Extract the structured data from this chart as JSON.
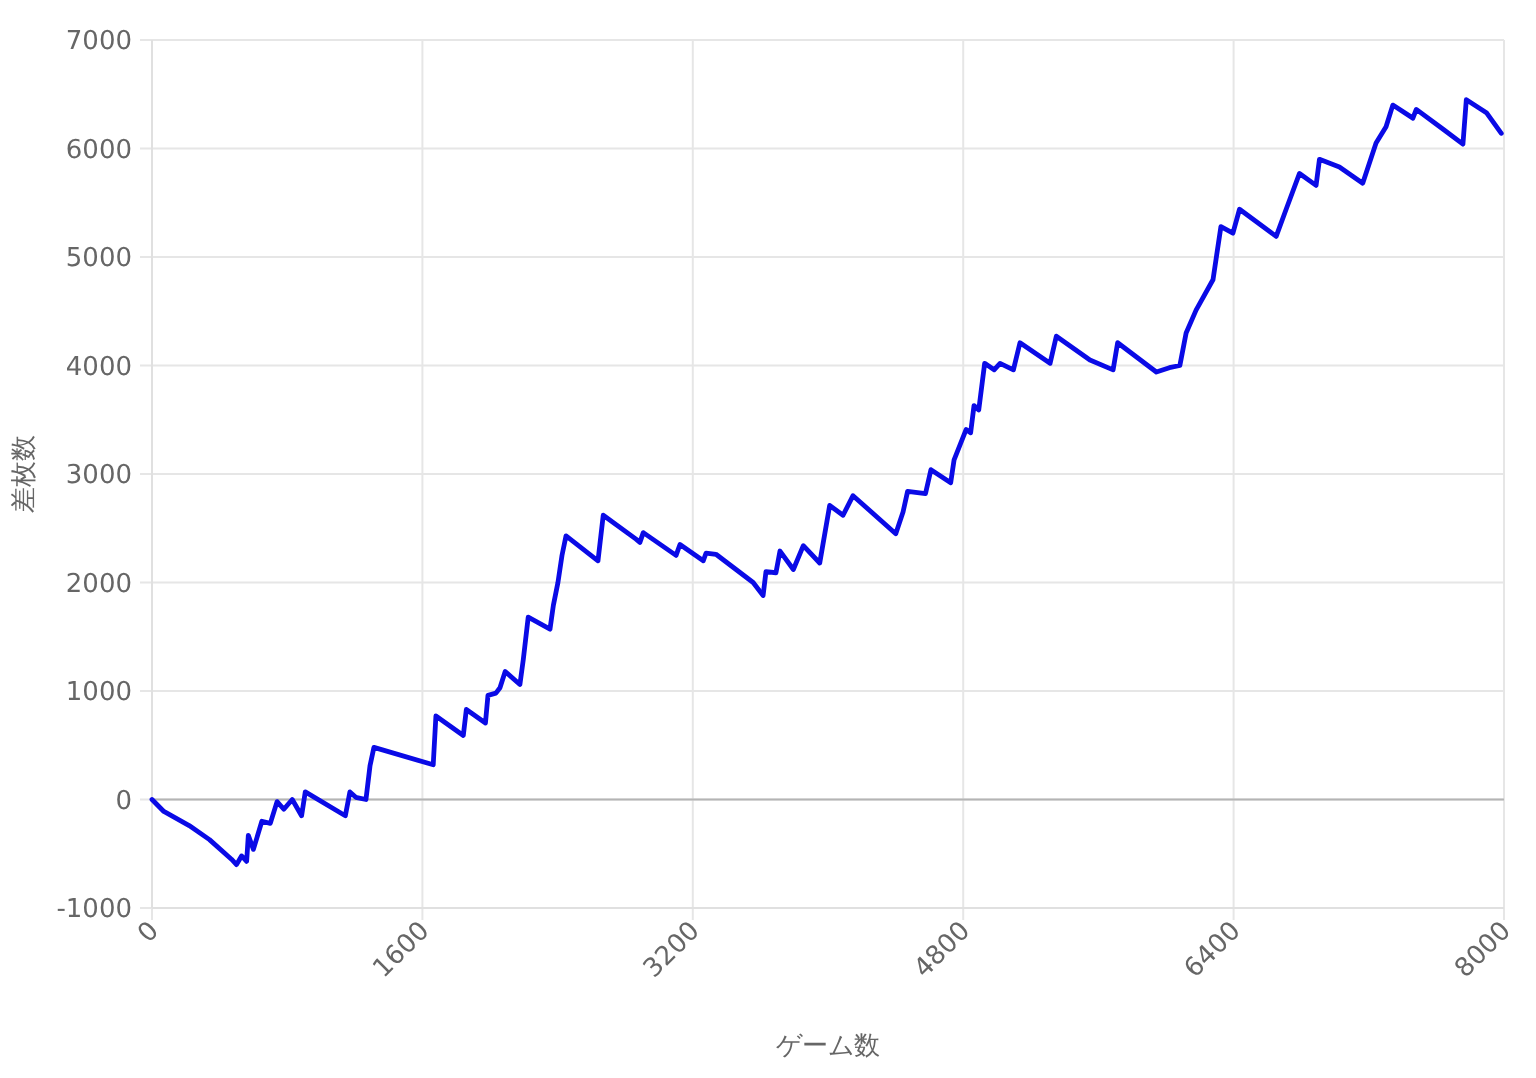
{
  "chart_data": {
    "type": "line",
    "xlabel": "ゲーム数",
    "ylabel": "差枚数",
    "series": [
      {
        "color": "#0a0ae6",
        "x": [
          0,
          70,
          220,
          340,
          470,
          500,
          530,
          560,
          570,
          600,
          650,
          700,
          740,
          780,
          830,
          885,
          907,
          1144,
          1171,
          1206,
          1266,
          1290,
          1313,
          1664,
          1680,
          1842,
          1860,
          1973,
          1988,
          2035,
          2059,
          2090,
          2177,
          2197,
          2226,
          2355,
          2375,
          2402,
          2426,
          2450,
          2639,
          2670,
          2864,
          2887,
          2907,
          3101,
          3124,
          3262,
          3278,
          3337,
          3557,
          3616,
          3633,
          3692,
          3716,
          3795,
          3854,
          3951,
          4010,
          4089,
          4148,
          4401,
          4444,
          4471,
          4577,
          4609,
          4726,
          4746,
          4817,
          4844,
          4864,
          4892,
          4927,
          4983,
          5018,
          5097,
          5136,
          5314,
          5351,
          5550,
          5687,
          5714,
          5943,
          6020,
          6082,
          6119,
          6178,
          6278,
          6325,
          6396,
          6435,
          6652,
          6711,
          6790,
          6888,
          6908,
          7026,
          7164,
          7243,
          7302,
          7342,
          7461,
          7481,
          7638,
          7757,
          7777,
          7896,
          7984
        ],
        "values": [
          0,
          -110,
          -240,
          -370,
          -550,
          -600,
          -520,
          -570,
          -330,
          -460,
          -200,
          -220,
          -20,
          -90,
          0,
          -150,
          70,
          -150,
          70,
          20,
          0,
          310,
          480,
          320,
          770,
          590,
          830,
          705,
          960,
          980,
          1030,
          1180,
          1060,
          1290,
          1680,
          1570,
          1790,
          2000,
          2250,
          2430,
          2200,
          2620,
          2400,
          2370,
          2460,
          2250,
          2350,
          2200,
          2270,
          2260,
          2000,
          1880,
          2100,
          2090,
          2290,
          2120,
          2340,
          2180,
          2710,
          2620,
          2800,
          2450,
          2650,
          2840,
          2820,
          3040,
          2920,
          3130,
          3410,
          3380,
          3630,
          3590,
          4020,
          3960,
          4020,
          3960,
          4210,
          4020,
          4270,
          4050,
          3960,
          4210,
          3940,
          3980,
          4000,
          4300,
          4510,
          4790,
          5280,
          5220,
          5440,
          5190,
          5440,
          5770,
          5660,
          5900,
          5830,
          5680,
          6050,
          6200,
          6400,
          6280,
          6360,
          6180,
          6040,
          6450,
          6330,
          6140
        ]
      }
    ],
    "xlim": [
      0,
      8000
    ],
    "xticks": [
      0,
      1600,
      3200,
      4800,
      6400,
      8000
    ],
    "ylim": [
      -1000,
      7000
    ],
    "yticks": [
      -1000,
      0,
      1000,
      2000,
      3000,
      4000,
      5000,
      6000,
      7000
    ],
    "grid": true,
    "marker": "none",
    "line_style": "solid",
    "ref_lines": [
      {
        "axis": "y",
        "value": 0,
        "color": "#b4b4b4"
      }
    ]
  }
}
